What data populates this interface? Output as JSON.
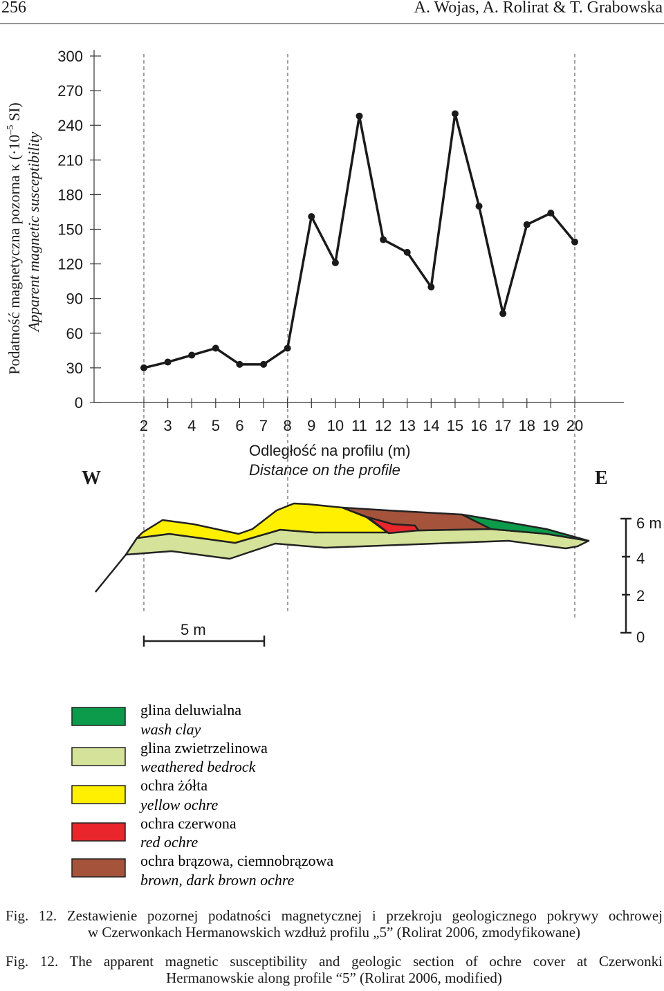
{
  "header": {
    "page_number": "256",
    "authors": "A. Wojas, A. Rolirat & T. Grabowska"
  },
  "chart_data": {
    "type": "line",
    "ylabel_pl": "Podatność magnetyczna pozorna κ (·10",
    "ylabel_exp": "–5",
    "ylabel_pl_suffix": " SI)",
    "ylabel_en": "Apparent magnetic susceptibility",
    "xlabel_pl": "Odległość na profilu (m)",
    "xlabel_en": "Distance on the profile",
    "ylim": [
      0,
      300
    ],
    "yticks": [
      0,
      30,
      60,
      90,
      120,
      150,
      180,
      210,
      240,
      270,
      300
    ],
    "x": [
      2,
      3,
      4,
      5,
      6,
      7,
      8,
      9,
      10,
      11,
      12,
      13,
      14,
      15,
      16,
      17,
      18,
      19,
      20
    ],
    "values": [
      30,
      35,
      41,
      47,
      33,
      33,
      47,
      161,
      121,
      248,
      141,
      130,
      100,
      250,
      170,
      77,
      154,
      164,
      139
    ],
    "color": "#1a1a1a"
  },
  "section": {
    "west_label": "W",
    "east_label": "E",
    "scale_bar_label": "5 m",
    "depth_ticks": [
      "6 m",
      "4",
      "2",
      "0"
    ]
  },
  "legend": [
    {
      "pl": "glina deluwialna",
      "en": "wash clay",
      "color": "#0c9b4a"
    },
    {
      "pl": "glina zwietrzelinowa",
      "en": "weathered bedrock",
      "color": "#d5e39a"
    },
    {
      "pl": "ochra żółta",
      "en": "yellow ochre",
      "color": "#ffef00"
    },
    {
      "pl": "ochra czerwona",
      "en": "red ochre",
      "color": "#e8262b"
    },
    {
      "pl": "ochra brązowa, ciemnobrązowa",
      "en": "brown, dark brown ochre",
      "color": "#a5533b"
    }
  ],
  "caption_pl": {
    "label": "Fig. 12.",
    "line1": "Zestawienie pozornej podatności magnetycznej i przekroju geologicznego pokrywy ochrowej",
    "line2": "w Czerwonkach Hermanowskich wzdłuż profilu „5” (Rolirat 2006, zmodyfikowane)"
  },
  "caption_en": {
    "label": "Fig. 12.",
    "line1": "The apparent magnetic susceptibility and geologic section of ochre cover at Czerwonki",
    "line2": "Hermanowskie along profile “5” (Rolirat 2006, modified)"
  }
}
